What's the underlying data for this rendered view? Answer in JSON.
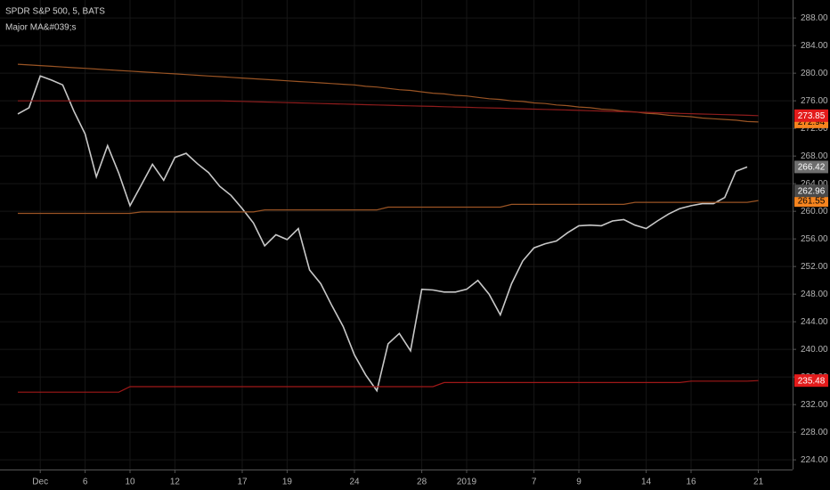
{
  "chart_data": {
    "type": "line",
    "title": "SPDR S&P 500, 5, BATS",
    "subtitle": "Major MA&#039;s",
    "background": "#000000",
    "grid": true,
    "categories": [
      null,
      null,
      "Dec",
      null,
      null,
      null,
      "6",
      null,
      null,
      null,
      "10",
      null,
      null,
      null,
      "12",
      null,
      null,
      null,
      null,
      null,
      "17",
      null,
      null,
      null,
      "19",
      null,
      null,
      null,
      null,
      null,
      "24",
      null,
      null,
      null,
      null,
      null,
      "28",
      null,
      null,
      null,
      "2019",
      null,
      null,
      null,
      null,
      null,
      "7",
      null,
      null,
      null,
      "9",
      null,
      null,
      null,
      null,
      null,
      "14",
      null,
      null,
      null,
      "16",
      null,
      null,
      null,
      null,
      null,
      "21"
    ],
    "ylim": [
      222.6,
      290.6
    ],
    "yticks": [
      {
        "value": 224,
        "label": "224.00"
      },
      {
        "value": 228,
        "label": "228.00"
      },
      {
        "value": 232,
        "label": "232.00"
      },
      {
        "value": 236,
        "label": "236.00"
      },
      {
        "value": 240,
        "label": "240.00"
      },
      {
        "value": 244,
        "label": "244.00"
      },
      {
        "value": 248,
        "label": "248.00"
      },
      {
        "value": 252,
        "label": "252.00"
      },
      {
        "value": 256,
        "label": "256.00"
      },
      {
        "value": 260,
        "label": "260.00"
      },
      {
        "value": 264,
        "label": "264.00"
      },
      {
        "value": 268,
        "label": "268.00"
      },
      {
        "value": 272,
        "label": "272.00"
      },
      {
        "value": 276,
        "label": "276.00"
      },
      {
        "value": 280,
        "label": "280.00"
      },
      {
        "value": 284,
        "label": "284.00"
      },
      {
        "value": 288,
        "label": "288.00"
      }
    ],
    "series": [
      {
        "color": "#c8c8c8",
        "label_color": "#6e6e6e",
        "label_text_color": "#ffffff",
        "values": [
          274.1,
          275.0,
          279.6,
          279.0,
          278.3,
          274.5,
          271.2,
          265.0,
          269.5,
          265.5,
          260.8,
          263.8,
          266.8,
          264.5,
          267.8,
          268.4,
          266.9,
          265.6,
          263.6,
          262.3,
          260.4,
          258.3,
          255.0,
          256.6,
          255.9,
          257.5,
          251.5,
          249.5,
          246.3,
          243.3,
          239.2,
          236.3,
          234.0,
          240.8,
          242.3,
          239.8,
          248.7,
          248.6,
          248.3,
          248.3,
          248.7,
          250.0,
          248.0,
          245.0,
          249.5,
          252.8,
          254.7,
          255.3,
          255.7,
          256.9,
          257.9,
          258.0,
          257.9,
          258.6,
          258.8,
          258.0,
          257.5,
          258.6,
          259.6,
          260.4,
          260.8,
          261.1,
          261.1,
          262.0,
          265.8,
          266.42,
          null
        ]
      },
      {
        "color": "#9a5424",
        "label_color": "#f5841f",
        "label_text_color": "#000000",
        "values": [
          281.3,
          281.2,
          281.1,
          281.0,
          280.9,
          280.8,
          280.7,
          280.6,
          280.5,
          280.4,
          280.3,
          280.2,
          280.1,
          280.0,
          279.9,
          279.8,
          279.7,
          279.6,
          279.5,
          279.4,
          279.3,
          279.2,
          279.1,
          279.0,
          278.9,
          278.8,
          278.7,
          278.6,
          278.5,
          278.4,
          278.3,
          278.1,
          278.0,
          277.8,
          277.6,
          277.5,
          277.3,
          277.1,
          277.0,
          276.8,
          276.7,
          276.5,
          276.3,
          276.2,
          276.0,
          275.9,
          275.7,
          275.6,
          275.4,
          275.3,
          275.1,
          275.0,
          274.8,
          274.7,
          274.5,
          274.4,
          274.2,
          274.1,
          273.9,
          273.8,
          273.7,
          273.5,
          273.4,
          273.3,
          273.2,
          273.0,
          272.94
        ]
      },
      {
        "color": "#8e1c1c",
        "label_color": "#e31b1b",
        "label_text_color": "#ffffff",
        "values": [
          276.0,
          276.0,
          276.0,
          276.0,
          276.0,
          276.0,
          276.0,
          276.0,
          276.0,
          276.0,
          276.0,
          276.0,
          276.0,
          276.0,
          276.0,
          276.0,
          276.0,
          276.0,
          276.0,
          275.96,
          275.91,
          275.87,
          275.83,
          275.79,
          275.74,
          275.7,
          275.66,
          275.61,
          275.57,
          275.53,
          275.49,
          275.44,
          275.4,
          275.36,
          275.31,
          275.27,
          275.23,
          275.19,
          275.14,
          275.1,
          275.06,
          275.01,
          274.97,
          274.93,
          274.89,
          274.84,
          274.8,
          274.75,
          274.71,
          274.66,
          274.61,
          274.56,
          274.52,
          274.47,
          274.42,
          274.37,
          274.33,
          274.28,
          274.23,
          274.18,
          274.14,
          274.09,
          274.04,
          273.99,
          273.95,
          273.9,
          273.85
        ]
      },
      {
        "color": "#9a5424",
        "label_color": "#f5841f",
        "label_text_color": "#000000",
        "values": [
          259.7,
          259.7,
          259.7,
          259.7,
          259.7,
          259.7,
          259.7,
          259.7,
          259.7,
          259.7,
          259.7,
          259.9,
          259.9,
          259.9,
          259.9,
          259.9,
          259.9,
          259.9,
          259.9,
          259.9,
          259.9,
          259.9,
          260.2,
          260.2,
          260.2,
          260.2,
          260.2,
          260.2,
          260.2,
          260.2,
          260.2,
          260.2,
          260.2,
          260.6,
          260.6,
          260.6,
          260.6,
          260.6,
          260.6,
          260.6,
          260.6,
          260.6,
          260.6,
          260.6,
          261.0,
          261.0,
          261.0,
          261.0,
          261.0,
          261.0,
          261.0,
          261.0,
          261.0,
          261.0,
          261.0,
          261.3,
          261.3,
          261.3,
          261.3,
          261.3,
          261.3,
          261.3,
          261.3,
          261.3,
          261.3,
          261.3,
          261.55
        ]
      },
      {
        "color": "#a01818",
        "label_color": "#e31b1b",
        "label_text_color": "#ffffff",
        "values": [
          233.8,
          233.8,
          233.8,
          233.8,
          233.8,
          233.8,
          233.8,
          233.8,
          233.8,
          233.8,
          234.6,
          234.6,
          234.6,
          234.6,
          234.6,
          234.6,
          234.6,
          234.6,
          234.6,
          234.6,
          234.6,
          234.6,
          234.6,
          234.6,
          234.6,
          234.6,
          234.6,
          234.6,
          234.6,
          234.6,
          234.6,
          234.6,
          234.6,
          234.6,
          234.6,
          234.6,
          234.6,
          234.6,
          235.2,
          235.2,
          235.2,
          235.2,
          235.2,
          235.2,
          235.2,
          235.2,
          235.2,
          235.2,
          235.2,
          235.2,
          235.2,
          235.2,
          235.2,
          235.2,
          235.2,
          235.2,
          235.2,
          235.2,
          235.2,
          235.2,
          235.4,
          235.4,
          235.4,
          235.4,
          235.4,
          235.4,
          235.48
        ]
      }
    ],
    "markers": [
      {
        "value": 262.96,
        "color": "#4a4a4a",
        "text_color": "#ffffff"
      }
    ]
  }
}
